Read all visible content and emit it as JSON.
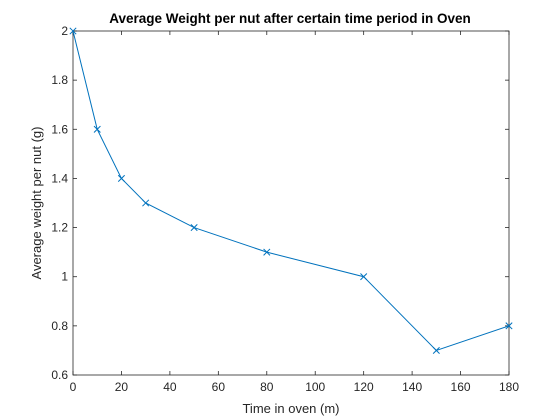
{
  "chart_data": {
    "type": "line",
    "title": "Average Weight per nut after certain time period in Oven",
    "xlabel": "Time in oven (m)",
    "ylabel": "Average weight per nut (g)",
    "xlim": [
      0,
      180
    ],
    "ylim": [
      0.6,
      2
    ],
    "x_ticks": [
      0,
      20,
      40,
      60,
      80,
      100,
      120,
      140,
      160,
      180
    ],
    "x_tick_labels": [
      "0",
      "20",
      "40",
      "60",
      "80",
      "100",
      "120",
      "140",
      "160",
      "180"
    ],
    "y_ticks": [
      0.6,
      0.8,
      1,
      1.2,
      1.4,
      1.6,
      1.8,
      2
    ],
    "y_tick_labels": [
      "0.6",
      "0.8",
      "1",
      "1.2",
      "1.4",
      "1.6",
      "1.8",
      "2"
    ],
    "grid": false,
    "series": [
      {
        "color": "#0072BD",
        "marker": "x",
        "x": [
          0,
          10,
          20,
          30,
          50,
          80,
          120,
          150,
          180
        ],
        "y": [
          2.0,
          1.6,
          1.4,
          1.3,
          1.2,
          1.1,
          1.0,
          0.7,
          0.8
        ]
      }
    ]
  }
}
